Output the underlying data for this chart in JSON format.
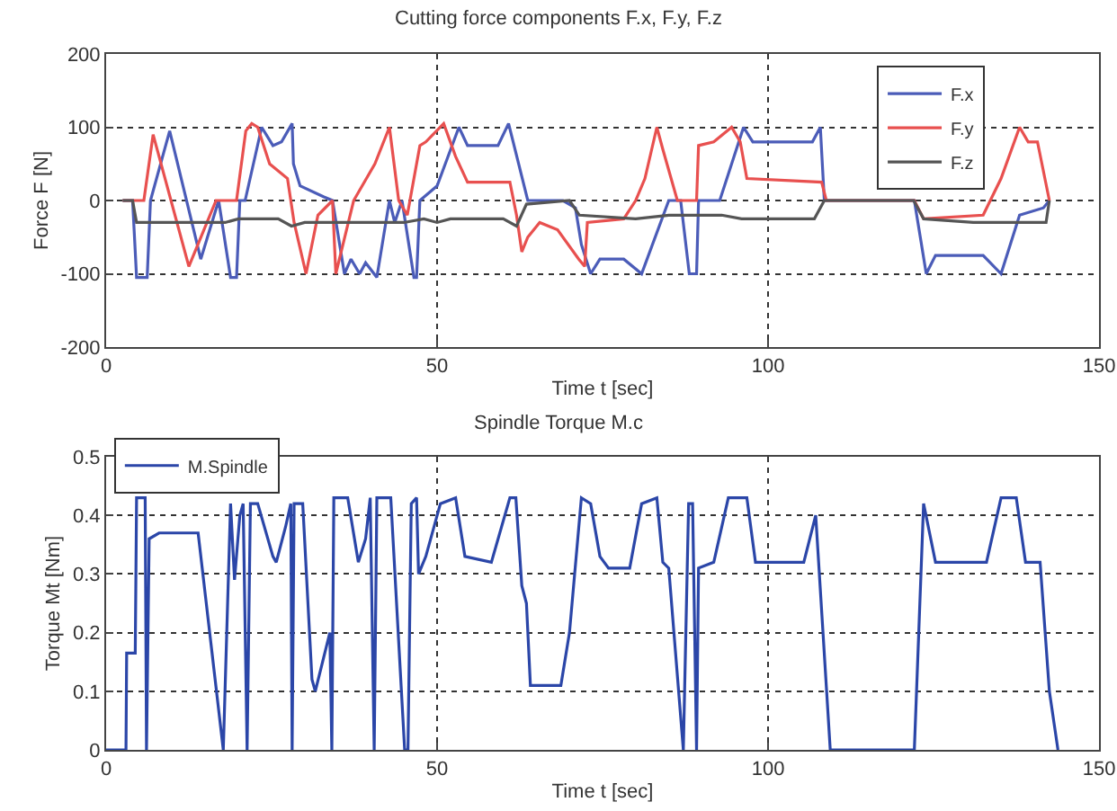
{
  "chart_data": [
    {
      "type": "line",
      "title": "Cutting force components F.x, F.y, F.z",
      "xlabel": "Time t [sec]",
      "ylabel": "Force F [N]",
      "xlim": [
        0,
        150
      ],
      "xticks": [
        0,
        50,
        100,
        150
      ],
      "ylim": [
        -200,
        200
      ],
      "yticks": [
        -200,
        -100,
        0,
        100,
        200
      ],
      "grid": true,
      "legend": "top right",
      "series": [
        {
          "name": "F.x",
          "color": "#4b5cb8",
          "x": [
            2.5,
            4,
            4.6,
            6.2,
            6.7,
            9.6,
            14.3,
            17,
            18.8,
            19.7,
            20.2,
            21,
            23.5,
            25.2,
            26.5,
            28.1,
            28.3,
            29.3,
            32.9,
            34.2,
            36,
            37,
            38.3,
            39.2,
            40.9,
            42.8,
            43.6,
            44.7,
            46.5,
            46.9,
            47.4,
            50,
            53.3,
            54.6,
            59.2,
            60.8,
            63.7,
            69,
            70.9,
            71.8,
            73.2,
            74.6,
            78.2,
            80.9,
            85,
            86.8,
            88.1,
            89.2,
            89.5,
            92.7,
            96.3,
            97.7,
            106.7,
            107.9,
            108.5,
            122.1,
            123.9,
            125.3,
            132.5,
            135.2,
            138,
            141.6,
            142.5
          ],
          "values": [
            0,
            0,
            -105,
            -105,
            0,
            95,
            -80,
            0,
            -105,
            -105,
            0,
            0,
            100,
            75,
            80,
            105,
            50,
            20,
            5,
            0,
            -100,
            -80,
            -100,
            -85,
            -105,
            0,
            -30,
            0,
            -105,
            -105,
            0,
            20,
            100,
            75,
            75,
            105,
            0,
            0,
            -10,
            -60,
            -100,
            -80,
            -80,
            -100,
            0,
            0,
            -100,
            -100,
            0,
            0,
            100,
            80,
            80,
            100,
            0,
            0,
            -100,
            -75,
            -75,
            -100,
            -20,
            -10,
            0
          ]
        },
        {
          "name": "F.y",
          "color": "#e8504f",
          "x": [
            2.5,
            5.7,
            7.1,
            12.5,
            16.6,
            19.7,
            21.1,
            22,
            22.9,
            24.7,
            27.4,
            28.4,
            30.2,
            32,
            34.2,
            34.7,
            37.4,
            40.6,
            42.8,
            44.2,
            45.5,
            47.4,
            48.3,
            51,
            52.8,
            54.6,
            61,
            62,
            62.8,
            63.7,
            65.5,
            68.2,
            71.4,
            72.3,
            72.7,
            78.2,
            80,
            81.4,
            83.2,
            84.1,
            86.3,
            89.2,
            89.5,
            91.8,
            94.5,
            95.8,
            96.8,
            108.1,
            108.8,
            122.1,
            123.5,
            132.5,
            135.2,
            138,
            139.3,
            140.7,
            142.5
          ],
          "values": [
            0,
            0,
            90,
            -90,
            0,
            0,
            95,
            105,
            100,
            50,
            30,
            -30,
            -100,
            -20,
            0,
            -100,
            0,
            50,
            100,
            0,
            -20,
            75,
            80,
            105,
            60,
            25,
            25,
            -20,
            -70,
            -50,
            -30,
            -40,
            -80,
            -90,
            -30,
            -25,
            0,
            30,
            100,
            70,
            0,
            0,
            75,
            80,
            100,
            80,
            30,
            25,
            0,
            0,
            -25,
            -20,
            30,
            100,
            80,
            80,
            0
          ]
        },
        {
          "name": "F.z",
          "color": "#555555",
          "x": [
            2.5,
            4,
            4.6,
            18,
            20,
            26,
            28,
            30,
            45,
            48,
            50,
            52,
            60,
            62,
            63.5,
            70,
            71.5,
            80,
            85,
            89,
            93,
            96,
            107,
            108.5,
            122,
            123.5,
            131,
            142,
            142.5
          ],
          "values": [
            0,
            0,
            -30,
            -30,
            -25,
            -25,
            -35,
            -30,
            -30,
            -25,
            -30,
            -25,
            -25,
            -35,
            -5,
            0,
            -20,
            -25,
            -20,
            -20,
            -20,
            -25,
            -25,
            0,
            0,
            -25,
            -30,
            -30,
            0
          ]
        }
      ]
    },
    {
      "type": "line",
      "title": "Spindle Torque M.c",
      "xlabel": "Time t [sec]",
      "ylabel": "Torque Mt [Nm]",
      "xlim": [
        0,
        150
      ],
      "xticks": [
        0,
        50,
        100,
        150
      ],
      "ylim": [
        0,
        0.5
      ],
      "yticks": [
        0,
        0.1,
        0.2,
        0.3,
        0.4,
        0.5
      ],
      "grid": true,
      "legend": "top left",
      "series": [
        {
          "name": "M.Spindle",
          "color": "#2b46a8",
          "x": [
            0,
            3,
            3.1,
            4.4,
            4.6,
            5.9,
            6.1,
            6.5,
            8,
            13.9,
            17.7,
            18.8,
            19.4,
            20.2,
            20.7,
            21.3,
            21.8,
            22.9,
            25.2,
            25.7,
            27.1,
            27.9,
            28.1,
            28.4,
            29.7,
            31.1,
            31.6,
            33.8,
            34.1,
            34.4,
            36.5,
            38.1,
            39.2,
            39.9,
            40.5,
            40.9,
            43,
            45.1,
            45.6,
            46.1,
            46.9,
            47.2,
            48.3,
            50.5,
            52.8,
            54.2,
            58.2,
            61,
            61.9,
            62.8,
            63.5,
            64.1,
            68.7,
            70,
            71.8,
            73.2,
            74.6,
            75.9,
            79.1,
            80.9,
            83.2,
            84.1,
            85,
            87.2,
            88,
            88.6,
            89.2,
            89.5,
            91.8,
            94,
            96.8,
            98.1,
            105.4,
            107.2,
            109.4,
            122.1,
            123.5,
            125.3,
            133,
            135.2,
            137.5,
            138.9,
            141.1,
            142.5,
            143.8
          ],
          "values": [
            0,
            0,
            0.165,
            0.165,
            0.43,
            0.43,
            0,
            0.36,
            0.37,
            0.37,
            0,
            0.42,
            0.29,
            0.4,
            0.42,
            0,
            0.42,
            0.42,
            0.33,
            0.32,
            0.38,
            0.42,
            0,
            0.42,
            0.42,
            0.12,
            0.1,
            0.2,
            0,
            0.43,
            0.43,
            0.32,
            0.36,
            0.43,
            0,
            0.43,
            0.43,
            0,
            0,
            0.42,
            0.43,
            0.3,
            0.33,
            0.42,
            0.43,
            0.33,
            0.32,
            0.43,
            0.43,
            0.28,
            0.25,
            0.11,
            0.11,
            0.2,
            0.43,
            0.42,
            0.33,
            0.31,
            0.31,
            0.42,
            0.43,
            0.32,
            0.31,
            0,
            0.42,
            0.42,
            0,
            0.31,
            0.32,
            0.43,
            0.43,
            0.32,
            0.32,
            0.4,
            0,
            0,
            0.42,
            0.32,
            0.32,
            0.43,
            0.43,
            0.32,
            0.32,
            0.1,
            0
          ]
        }
      ]
    }
  ]
}
